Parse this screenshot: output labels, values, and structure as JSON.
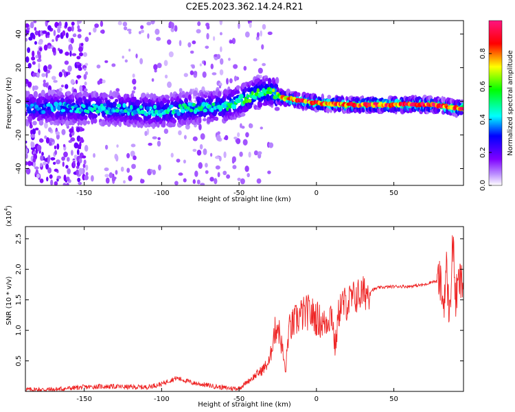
{
  "title": "C2E5.2023.362.14.24.R21",
  "chart_data": [
    {
      "type": "heatmap",
      "xlabel": "Height of straight line (km)",
      "ylabel": "Frequency (Hz)",
      "xlim": [
        -188,
        95
      ],
      "ylim": [
        -50,
        48
      ],
      "xticks": [
        -150,
        -100,
        -50,
        0,
        50
      ],
      "yticks": [
        -40,
        -20,
        0,
        20,
        40
      ],
      "colorbar": {
        "label": "Normalized spectral amplitude",
        "range": [
          0,
          1
        ],
        "ticks": [
          "0.0",
          "0.2",
          "0.4",
          "0.6",
          "0.8"
        ],
        "tick_values": [
          0.0,
          0.2,
          0.4,
          0.6,
          0.8
        ],
        "colors": [
          "#ffffff",
          "#8a2be2",
          "#0000ff",
          "#00ffff",
          "#00ff00",
          "#ffff00",
          "#ff0000",
          "#ff1493"
        ]
      },
      "ridge": {
        "x": [
          -185,
          -150,
          -120,
          -100,
          -80,
          -60,
          -50,
          -40,
          -30,
          -22,
          -15,
          0,
          20,
          50,
          75,
          90,
          95
        ],
        "y": [
          -4,
          -4,
          -5,
          -6,
          -4,
          -3,
          0,
          4,
          6,
          2,
          1,
          -1,
          -2,
          -2,
          -2,
          -4,
          -4
        ],
        "peak_amplitude": [
          0.35,
          0.45,
          0.45,
          0.45,
          0.5,
          0.5,
          0.55,
          0.6,
          0.55,
          0.8,
          0.9,
          0.9,
          0.9,
          0.95,
          0.95,
          0.9,
          0.9
        ]
      }
    },
    {
      "type": "line",
      "xlabel": "Height of straight line (km)",
      "ylabel": "SNR (10 * v/v)",
      "y_scale_label": "(x10",
      "y_scale_exp": "4",
      "xlim": [
        -188,
        95
      ],
      "ylim": [
        0,
        2.7
      ],
      "xticks": [
        -150,
        -100,
        -50,
        0,
        50
      ],
      "yticks": [
        "0.5",
        "1.0",
        "1.5",
        "2.0",
        "2.5"
      ],
      "ytick_values": [
        0.5,
        1.0,
        1.5,
        2.0,
        2.5
      ],
      "series": [
        {
          "color": "#ee2222",
          "x": [
            -188,
            -170,
            -160,
            -150,
            -140,
            -130,
            -120,
            -110,
            -100,
            -95,
            -90,
            -85,
            -80,
            -75,
            -70,
            -65,
            -60,
            -55,
            -50,
            -45,
            -40,
            -35,
            -30,
            -28,
            -25,
            -22,
            -20,
            -18,
            -15,
            -12,
            -10,
            -5,
            0,
            5,
            10,
            12,
            15,
            20,
            25,
            30,
            40,
            50,
            60,
            70,
            75,
            80,
            82,
            84,
            86,
            88,
            90,
            92,
            95
          ],
          "y": [
            0.03,
            0.03,
            0.05,
            0.07,
            0.08,
            0.08,
            0.07,
            0.07,
            0.12,
            0.18,
            0.22,
            0.18,
            0.14,
            0.12,
            0.1,
            0.08,
            0.06,
            0.05,
            0.05,
            0.15,
            0.25,
            0.35,
            0.5,
            0.9,
            1.1,
            0.7,
            0.3,
            1.0,
            1.1,
            1.2,
            1.25,
            1.3,
            1.2,
            1.1,
            1.3,
            0.7,
            1.4,
            1.45,
            1.55,
            1.6,
            1.7,
            1.72,
            1.72,
            1.75,
            1.8,
            1.8,
            1.4,
            2.0,
            1.2,
            2.5,
            1.5,
            1.8,
            1.75
          ]
        }
      ]
    }
  ]
}
